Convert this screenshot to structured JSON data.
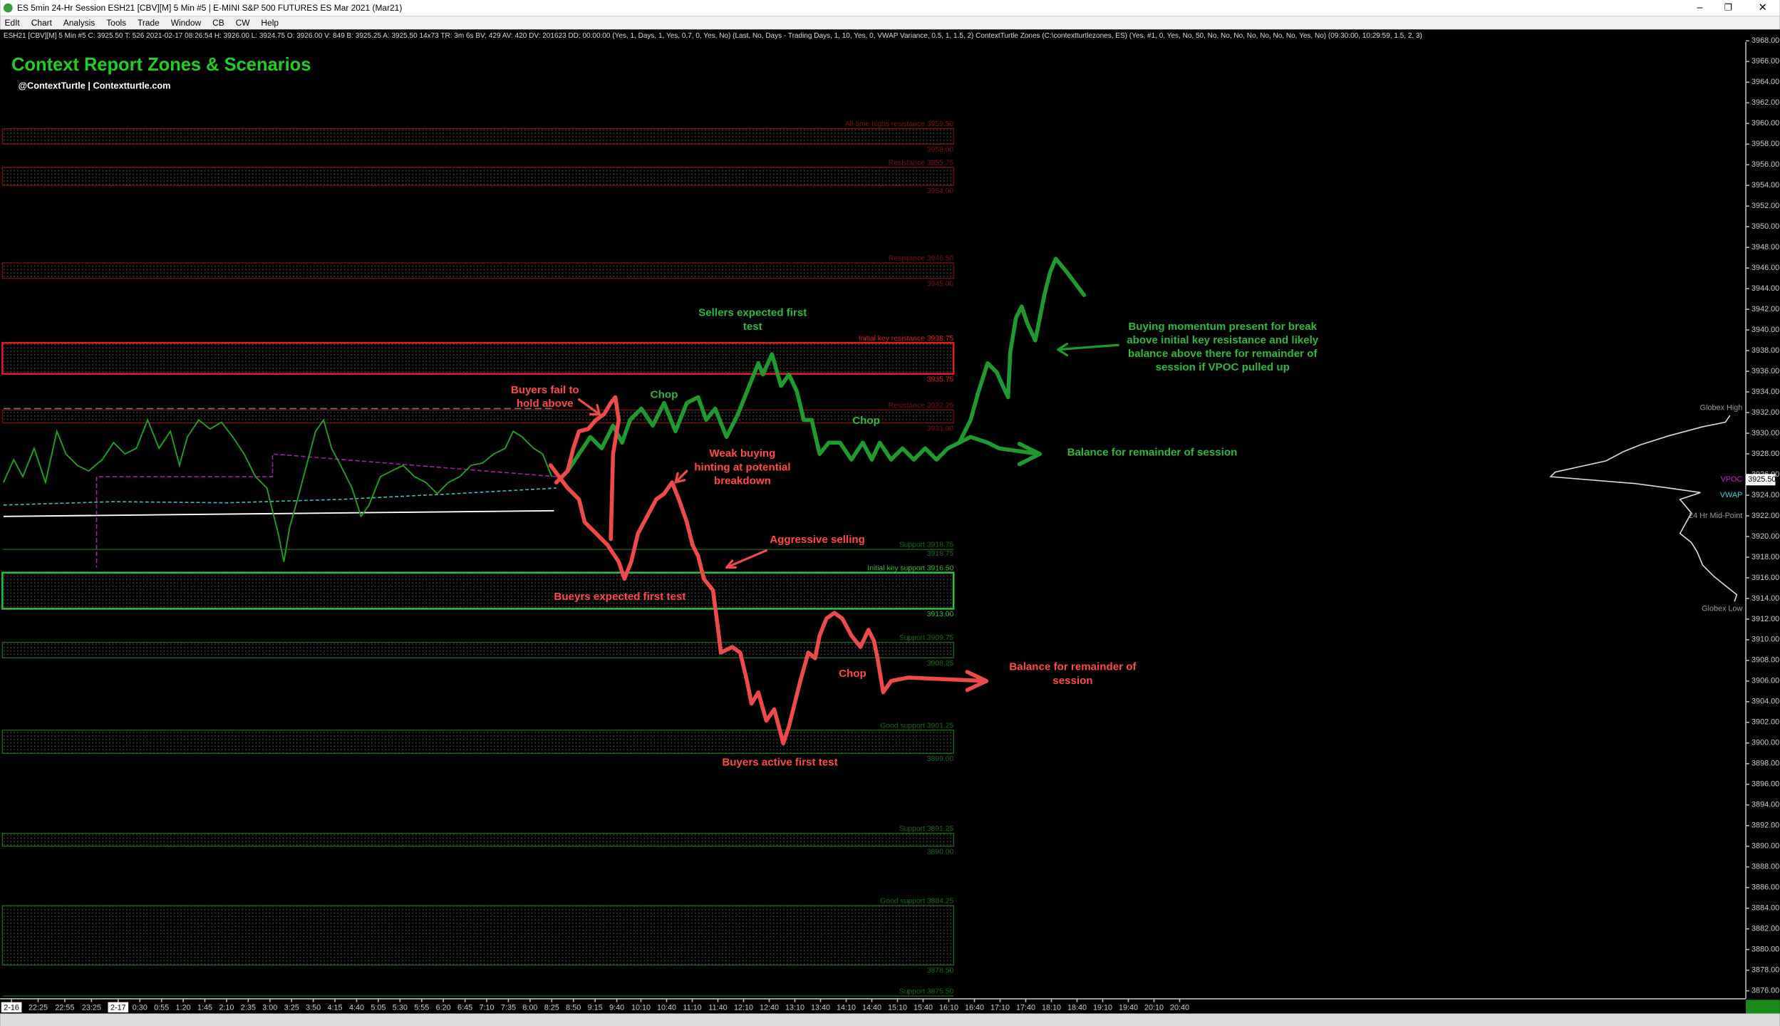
{
  "window": {
    "title": "ES 5min 24-Hr Session ESH21 [CBV][M]  5 Min  #5 | E-MINI S&P 500 FUTURES ES Mar 2021 (Mar21)",
    "menu": [
      "EdIt",
      "Chart",
      "Analysis",
      "Tools",
      "Trade",
      "Window",
      "CB",
      "CW",
      "Help"
    ],
    "info_line": "ESH21 [CBV][M]  5 Min  #5  C: 3925.50  T: 526  2021-02-17 08:26:54 H: 3926.00 L: 3924.75 O: 3926.00 V: 849 B: 3925.25 A: 3925.50 14x73 TR: 3m 6s BV: 429 AV: 420 DV: 201623 DD: 00:00:00  (Yes, 1, Days, 1, Yes, 0.7, 0, Yes, No)  (Last, No, Days - Trading Days, 1, 10, Yes, 0, VWAP Variance, 0.5, 1, 1.5, 2)  ContextTurtle Zones  (C:\\contextturtlezones, ES)  (Yes, #1, 0, Yes, No, 50, No, No, No, No, No, No, No, Yes, No)  (09:30:00, 10:29:59, 1.5, 2, 3)"
  },
  "header": {
    "title": "Context Report Zones & Scenarios",
    "subtitle": "@ContextTurtle | Contextturtle.com"
  },
  "price_axis": {
    "lim": [
      3876,
      3968
    ],
    "ticks": [
      {
        "value": 3968,
        "label": "3968.00"
      },
      {
        "value": 3966,
        "label": "3966.00"
      },
      {
        "value": 3964,
        "label": "3964.00"
      },
      {
        "value": 3962,
        "label": "3962.00"
      },
      {
        "value": 3960,
        "label": "3960.00"
      },
      {
        "value": 3958,
        "label": "3958.00"
      },
      {
        "value": 3956,
        "label": "3956.00"
      },
      {
        "value": 3954,
        "label": "3954.00"
      },
      {
        "value": 3952,
        "label": "3952.00"
      },
      {
        "value": 3950,
        "label": "3950.00"
      },
      {
        "value": 3948,
        "label": "3948.00"
      },
      {
        "value": 3946,
        "label": "3946.00"
      },
      {
        "value": 3944,
        "label": "3944.00"
      },
      {
        "value": 3942,
        "label": "3942.00"
      },
      {
        "value": 3940,
        "label": "3940.00"
      },
      {
        "value": 3938,
        "label": "3938.00"
      },
      {
        "value": 3936,
        "label": "3936.00"
      },
      {
        "value": 3934,
        "label": "3934.00"
      },
      {
        "value": 3932,
        "label": "3932.00"
      },
      {
        "value": 3930,
        "label": "3930.00"
      },
      {
        "value": 3928,
        "label": "3928.00"
      },
      {
        "value": 3926,
        "label": "3926.00"
      },
      {
        "value": 3924,
        "label": "3924.00"
      },
      {
        "value": 3922,
        "label": "3922.00"
      },
      {
        "value": 3920,
        "label": "3920.00"
      },
      {
        "value": 3918,
        "label": "3918.00"
      },
      {
        "value": 3916,
        "label": "3916.00"
      },
      {
        "value": 3914,
        "label": "3914.00"
      },
      {
        "value": 3912,
        "label": "3912.00"
      },
      {
        "value": 3910,
        "label": "3910.00"
      },
      {
        "value": 3908,
        "label": "3908.00"
      },
      {
        "value": 3906,
        "label": "3906.00"
      },
      {
        "value": 3904,
        "label": "3904.00"
      },
      {
        "value": 3902,
        "label": "3902.00"
      },
      {
        "value": 3900,
        "label": "3900.00"
      },
      {
        "value": 3898,
        "label": "3898.00"
      },
      {
        "value": 3896,
        "label": "3896.00"
      },
      {
        "value": 3894,
        "label": "3894.00"
      },
      {
        "value": 3892,
        "label": "3892.00"
      },
      {
        "value": 3890,
        "label": "3890.00"
      },
      {
        "value": 3888,
        "label": "3888.00"
      },
      {
        "value": 3886,
        "label": "3886.00"
      },
      {
        "value": 3884,
        "label": "3884.00"
      },
      {
        "value": 3882,
        "label": "3882.00"
      },
      {
        "value": 3880,
        "label": "3880.00"
      },
      {
        "value": 3878,
        "label": "3878.00"
      },
      {
        "value": 3876,
        "label": "3876.00"
      }
    ]
  },
  "time_axis": [
    "2-16",
    "22:25",
    "22:55",
    "23:25",
    "2-17",
    "0:30",
    "0:55",
    "1:20",
    "1:45",
    "2:10",
    "2:35",
    "3:00",
    "3:25",
    "3:50",
    "4:15",
    "4:40",
    "5:05",
    "5:30",
    "5:55",
    "6:20",
    "6:45",
    "7:10",
    "7:35",
    "8:00",
    "8:25",
    "8:50",
    "9:15",
    "9:40",
    "10:10",
    "10:40",
    "11:10",
    "11:40",
    "12:10",
    "12:40",
    "13:10",
    "13:40",
    "14:10",
    "14:40",
    "15:10",
    "15:40",
    "16:10",
    "16:40",
    "17:10",
    "17:40",
    "18:10",
    "18:40",
    "19:10",
    "19:40",
    "20:10",
    "20:40"
  ],
  "zones": [
    {
      "name": "All-time highs resistance",
      "top": {
        "value": 3959.5,
        "label": "3959.50"
      },
      "bottom": {
        "value": 3958,
        "label": "3958.00"
      },
      "color": "#7a1414"
    },
    {
      "name": "Resistance",
      "top": {
        "value": 3955.75,
        "label": "3955.75"
      },
      "bottom": {
        "value": 3954,
        "label": "3954.00"
      },
      "color": "#7a1414"
    },
    {
      "name": "Resistance",
      "top": {
        "value": 3946.5,
        "label": "3946.50"
      },
      "bottom": {
        "value": 3945,
        "label": "3945.00"
      },
      "color": "#7a1414"
    },
    {
      "name": "Initial key resistance",
      "top": {
        "value": 3938.75,
        "label": "3938.75"
      },
      "bottom": {
        "value": 3935.75,
        "label": "3935.75"
      },
      "color": "#e01e1e"
    },
    {
      "name": "Resistance",
      "top": {
        "value": 3932.25,
        "label": "3932.25"
      },
      "bottom": {
        "value": 3931,
        "label": "3931.00"
      },
      "color": "#7a1414"
    },
    {
      "name": "Support",
      "top": {
        "value": 3918.75,
        "label": "3918.75"
      },
      "bottom": {
        "value": 3918.75,
        "label": "3918.75"
      },
      "color": "#1d6b1d"
    },
    {
      "name": "Initial key support",
      "top": {
        "value": 3916.5,
        "label": "3916.50"
      },
      "bottom": {
        "value": 3913,
        "label": "3913.00"
      },
      "color": "#2fbf2f"
    },
    {
      "name": "Support",
      "top": {
        "value": 3909.75,
        "label": "3909.75"
      },
      "bottom": {
        "value": 3908.25,
        "label": "3908.25"
      },
      "color": "#1d6b1d"
    },
    {
      "name": "Good support",
      "top": {
        "value": 3901.25,
        "label": "3901.25"
      },
      "bottom": {
        "value": 3899,
        "label": "3899.00"
      },
      "color": "#1d6b1d"
    },
    {
      "name": "Support",
      "top": {
        "value": 3891.25,
        "label": "3891.25"
      },
      "bottom": {
        "value": 3890,
        "label": "3890.00"
      },
      "color": "#1d6b1d"
    },
    {
      "name": "Good support",
      "top": {
        "value": 3884.25,
        "label": "3884.25"
      },
      "bottom": {
        "value": 3878.5,
        "label": "3878.50"
      },
      "color": "#1d6b1d"
    },
    {
      "name": "Support",
      "top": {
        "value": 3875.5,
        "label": "3875.50"
      },
      "bottom": {
        "value": 3875.5,
        "label": "3875.50"
      },
      "color": "#1d6b1d"
    }
  ],
  "markers": [
    {
      "label": "Globex High",
      "price": 3932,
      "color": "#9a9a9a"
    },
    {
      "label": "VPOC",
      "price": {
        "value": 3925.5,
        "label": "3925.50"
      },
      "color": "#d020d0"
    },
    {
      "label": "VWAP",
      "price": 3924,
      "color": "#40d0d0"
    },
    {
      "label": "24 Hr Mid-Point",
      "price": 3922,
      "color": "#9a9a9a"
    },
    {
      "label": "Globex Low",
      "price": 3913,
      "color": "#9a9a9a"
    }
  ],
  "annotations": {
    "green": [
      [
        "Sellers expected first",
        "test"
      ],
      [
        "Chop"
      ],
      [
        "Chop"
      ],
      [
        "Buying momentum present for break",
        "above initial key resistance and likely",
        "balance above there for remainder of",
        "session if VPOC pulled up"
      ],
      [
        "Balance for remainder of session"
      ]
    ],
    "red": [
      [
        "Buyers fail to",
        "hold above"
      ],
      [
        "Weak buying",
        "hinting at potential",
        "breakdown"
      ],
      [
        "Aggressive selling"
      ],
      [
        "Bueyrs expected first test"
      ],
      [
        "Chop"
      ],
      [
        "Balance for remainder of",
        "session"
      ],
      [
        "Buyers active first test"
      ]
    ]
  }
}
